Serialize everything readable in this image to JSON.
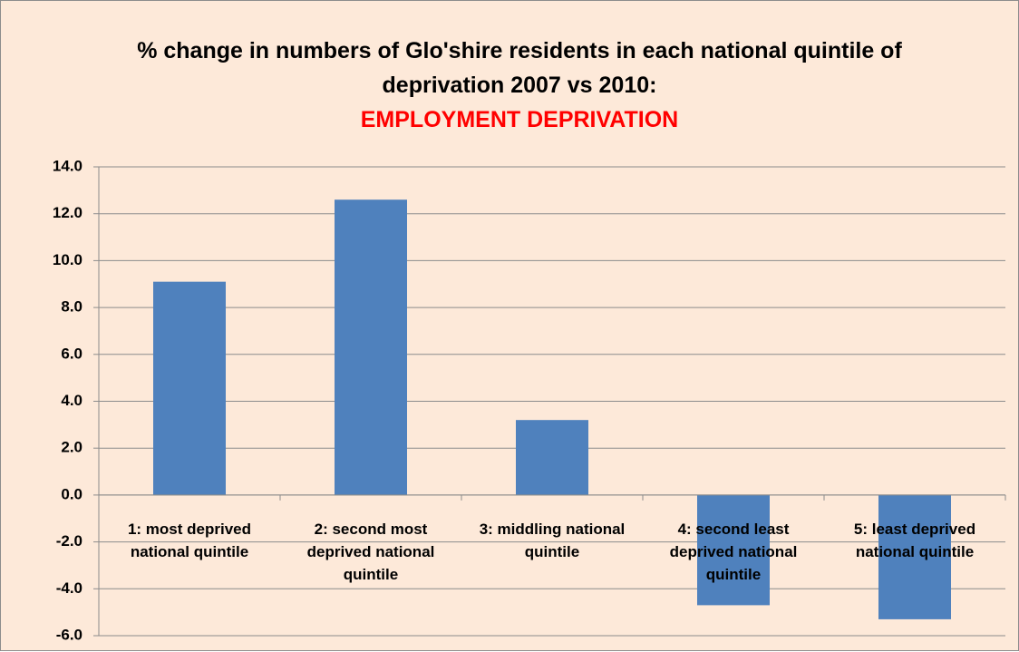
{
  "chart_data": {
    "type": "bar",
    "title": "% change in numbers of Glo'shire residents in each national quintile of deprivation 2007 vs 2010:",
    "subtitle": "EMPLOYMENT DEPRIVATION",
    "categories": [
      "1: most deprived national quintile",
      "2: second most deprived national quintile",
      "3: middling national quintile",
      "4: second least deprived national quintile",
      "5: least deprived national quintile"
    ],
    "values": [
      9.1,
      12.6,
      3.2,
      -4.7,
      -5.3
    ],
    "color": "#4f81bd",
    "ylim": [
      -6,
      14
    ],
    "yticks": [
      {
        "value": 14,
        "label": "14.0"
      },
      {
        "value": 12,
        "label": "12.0"
      },
      {
        "value": 10,
        "label": "10.0"
      },
      {
        "value": 8,
        "label": "8.0"
      },
      {
        "value": 6,
        "label": "6.0"
      },
      {
        "value": 4,
        "label": "4.0"
      },
      {
        "value": 2,
        "label": "2.0"
      },
      {
        "value": 0,
        "label": "0.0"
      },
      {
        "value": -2,
        "label": "-2.0"
      },
      {
        "value": -4,
        "label": "-4.0"
      },
      {
        "value": -6,
        "label": "-6.0"
      }
    ],
    "grid": true
  }
}
